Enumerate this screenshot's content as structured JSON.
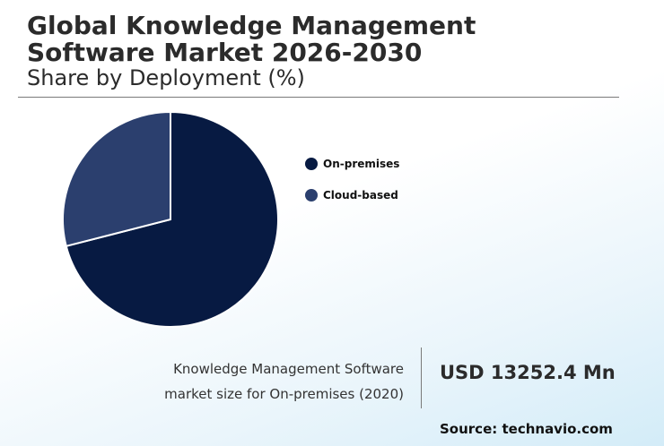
{
  "header": {
    "title": "Global Knowledge Management\nSoftware Market 2026-2030",
    "subtitle": "Share by Deployment (%)"
  },
  "chart_data": {
    "type": "pie",
    "categories": [
      "On-premises",
      "Cloud-based"
    ],
    "values": [
      71,
      29
    ],
    "colors": [
      "#071a42",
      "#2b3f6e"
    ],
    "legend_position": "right"
  },
  "footer": {
    "market_label_line1": "Knowledge Management Software",
    "market_label_line2": "market size for On-premises (2020)",
    "market_value": "USD 13252.4 Mn",
    "source": "Source: technavio.com"
  }
}
